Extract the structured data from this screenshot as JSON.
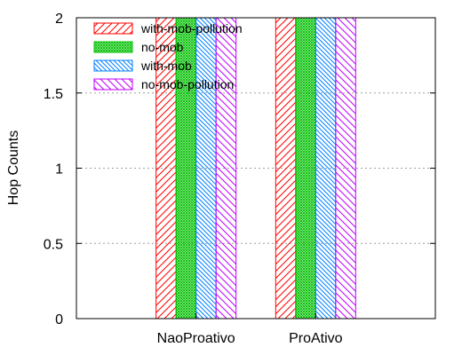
{
  "chart_data": {
    "type": "bar",
    "title": "",
    "xlabel": "",
    "ylabel": "Hop Counts",
    "ylim": [
      0,
      2
    ],
    "yticks": [
      0,
      0.5,
      1,
      1.5,
      2
    ],
    "ytick_labels": [
      "0",
      "0.5",
      "1",
      "1.5",
      "2"
    ],
    "grid": "horizontal dotted",
    "legend_position": "top-left",
    "categories": [
      "NaoProativo",
      "ProAtivo"
    ],
    "series": [
      {
        "name": "with-mob-pollution",
        "values": [
          2,
          2
        ],
        "color": "#ff0000",
        "pattern": "diagonal-up"
      },
      {
        "name": "no-mob",
        "values": [
          2,
          2
        ],
        "color": "#00c000",
        "pattern": "crosshatch"
      },
      {
        "name": "with-mob",
        "values": [
          2,
          2
        ],
        "color": "#0080ff",
        "pattern": "diagonal-down"
      },
      {
        "name": "no-mob-pollution",
        "values": [
          2,
          2
        ],
        "color": "#c000ff",
        "pattern": "diagonal-down-sparse"
      }
    ]
  }
}
